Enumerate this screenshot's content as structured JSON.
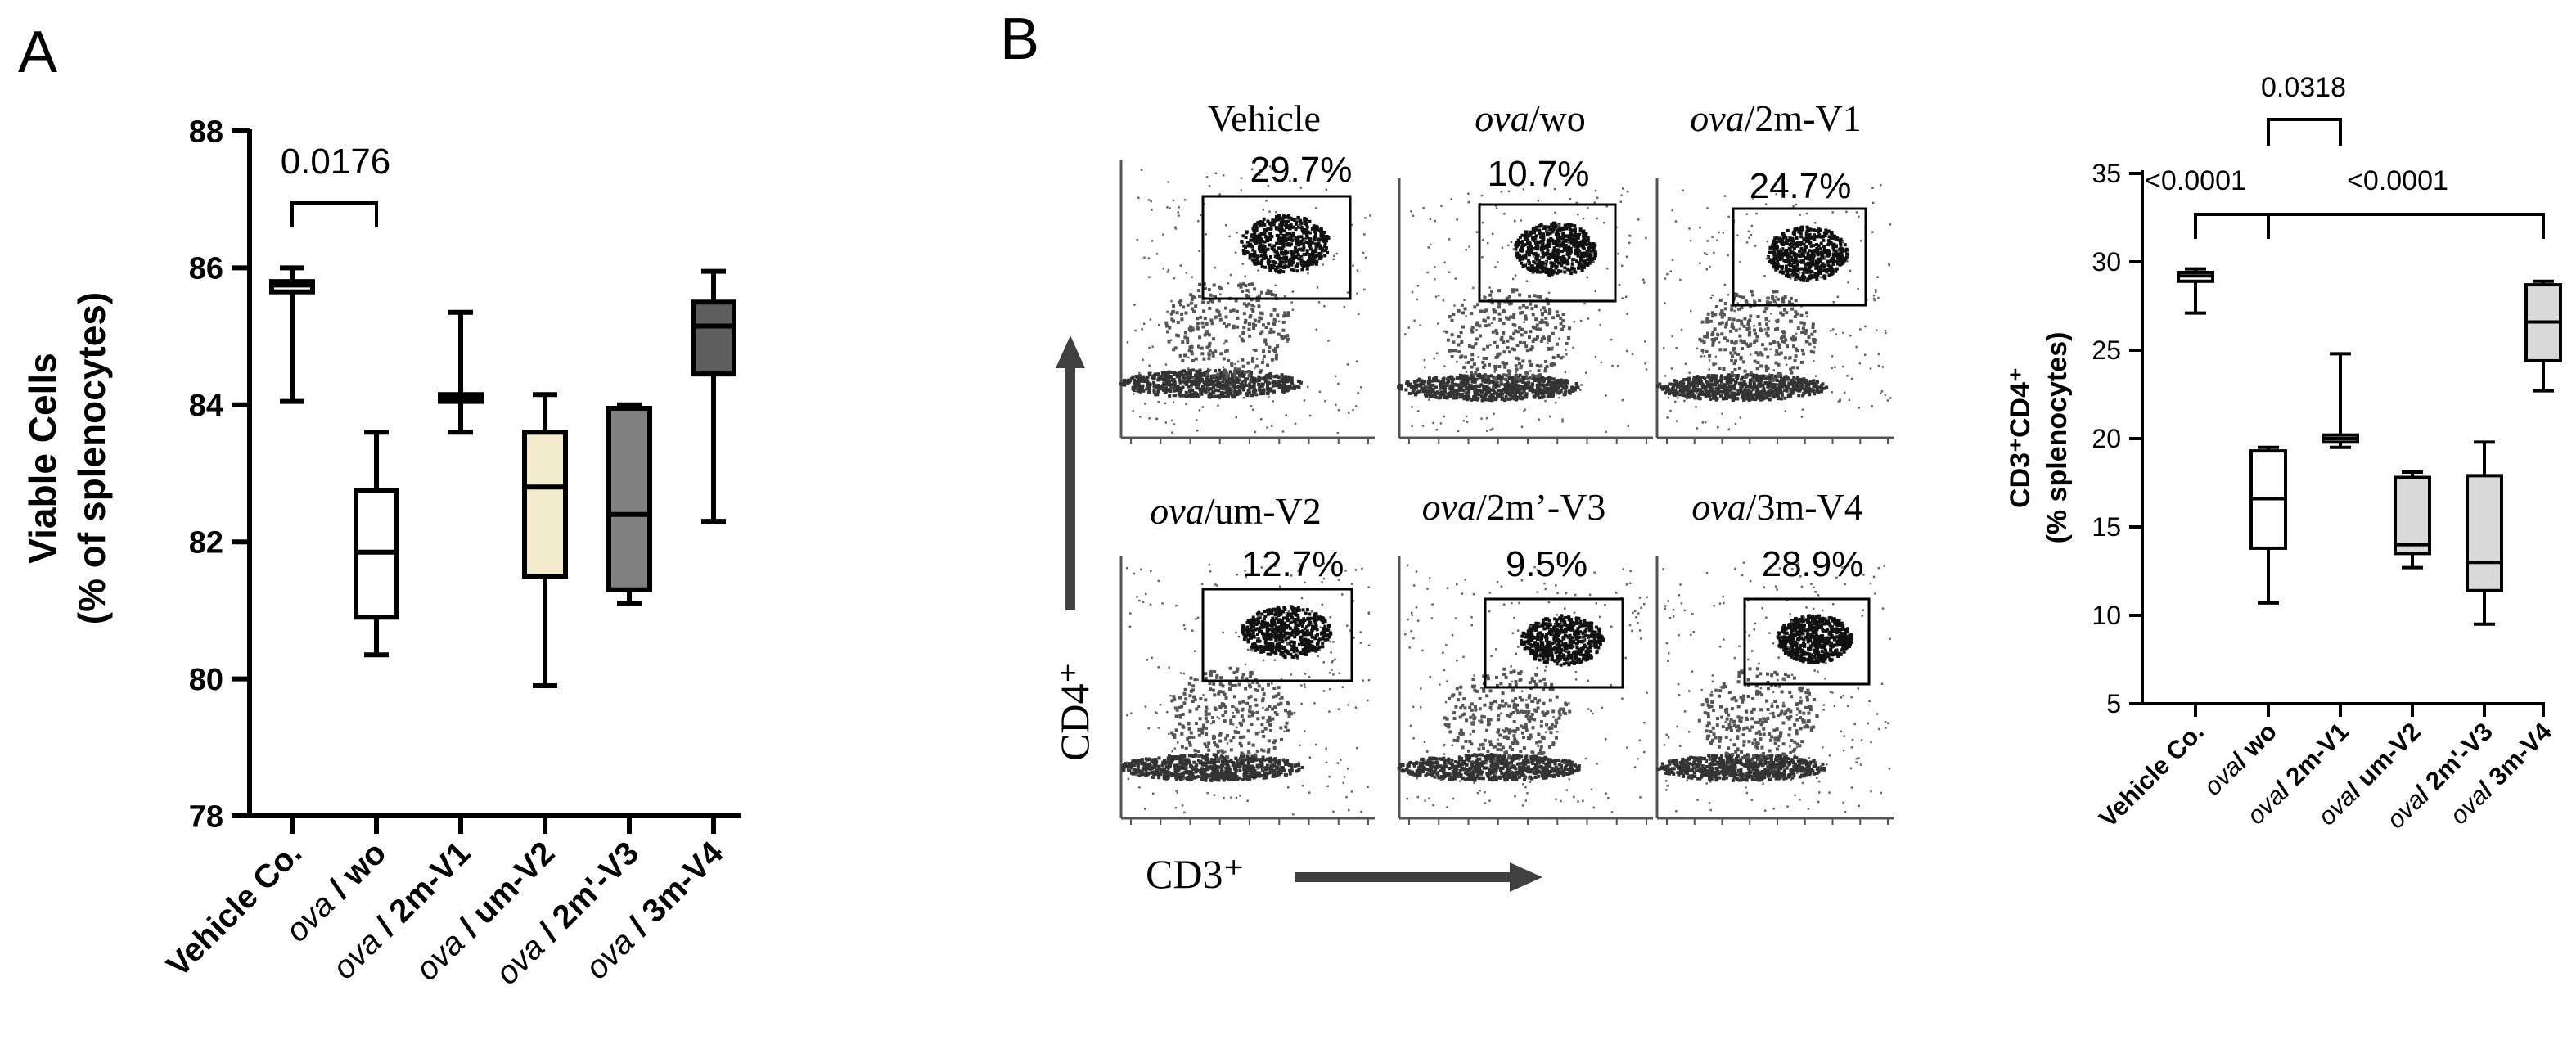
{
  "chart_data": [
    {
      "panel": "A",
      "type": "box",
      "ylabel": [
        "Viable Cells",
        "(% of splenocytes)"
      ],
      "ylim": [
        78,
        88
      ],
      "yticks": [
        78,
        80,
        82,
        84,
        86,
        88
      ],
      "categories": [
        {
          "prefix": "",
          "name": "Vehicle Co."
        },
        {
          "prefix": "ova",
          "sep": " / ",
          "name": "wo"
        },
        {
          "prefix": "ova",
          "sep": " / ",
          "name": "2m-V1"
        },
        {
          "prefix": "ova",
          "sep": " / ",
          "name": "um-V2"
        },
        {
          "prefix": "ova",
          "sep": " / ",
          "name": "2m'-V3"
        },
        {
          "prefix": "ova",
          "sep": " / ",
          "name": "3m-V4"
        }
      ],
      "boxes": [
        {
          "min": 84.05,
          "q1": 85.65,
          "median": 85.75,
          "q3": 85.8,
          "max": 86.0,
          "fill": "#ffffff"
        },
        {
          "min": 80.35,
          "q1": 80.9,
          "median": 81.85,
          "q3": 82.75,
          "max": 83.6,
          "fill": "#ffffff"
        },
        {
          "min": 83.6,
          "q1": 84.05,
          "median": 84.1,
          "q3": 84.15,
          "max": 85.35,
          "fill": "#ffffff"
        },
        {
          "min": 79.9,
          "q1": 81.5,
          "median": 82.8,
          "q3": 83.6,
          "max": 84.15,
          "fill": "#f2eccc"
        },
        {
          "min": 81.1,
          "q1": 81.3,
          "median": 82.4,
          "q3": 83.95,
          "max": 84.0,
          "fill": "#808080"
        },
        {
          "min": 82.3,
          "q1": 84.45,
          "median": 85.15,
          "q3": 85.5,
          "max": 85.95,
          "fill": "#5e5e5e"
        }
      ],
      "comparisons": [
        {
          "from": 0,
          "to": 1,
          "label": "0.0176"
        }
      ]
    },
    {
      "panel": "B-right",
      "type": "box",
      "ylabel": [
        "CD3⁺CD4⁺",
        "(% splenocytes)"
      ],
      "ylim": [
        5,
        35
      ],
      "yticks": [
        5,
        10,
        15,
        20,
        25,
        30,
        35
      ],
      "categories": [
        {
          "prefix": "",
          "name": "Vehicle Co."
        },
        {
          "prefix": "ova",
          "sep": "/ ",
          "name": "wo"
        },
        {
          "prefix": "ova",
          "sep": "/ ",
          "name": "2m-V1"
        },
        {
          "prefix": "ova",
          "sep": "/ ",
          "name": "um-V2"
        },
        {
          "prefix": "ova",
          "sep": "/ ",
          "name": "2m'-V3"
        },
        {
          "prefix": "ova",
          "sep": "/ ",
          "name": "3m-V4"
        }
      ],
      "boxes": [
        {
          "min": 27.1,
          "q1": 28.9,
          "median": 29.2,
          "q3": 29.4,
          "max": 29.6,
          "fill": "#ffffff"
        },
        {
          "min": 10.7,
          "q1": 13.8,
          "median": 16.6,
          "q3": 19.3,
          "max": 19.5,
          "fill": "#ffffff"
        },
        {
          "min": 19.5,
          "q1": 19.8,
          "median": 20.0,
          "q3": 20.2,
          "max": 24.8,
          "fill": "#ffffff"
        },
        {
          "min": 12.7,
          "q1": 13.5,
          "median": 14.0,
          "q3": 17.8,
          "max": 18.1,
          "fill": "#d9d9d9"
        },
        {
          "min": 9.5,
          "q1": 11.4,
          "median": 13.0,
          "q3": 17.9,
          "max": 19.8,
          "fill": "#d9d9d9"
        },
        {
          "min": 22.7,
          "q1": 24.4,
          "median": 26.6,
          "q3": 28.7,
          "max": 28.9,
          "fill": "#d9d9d9"
        }
      ],
      "comparisons": [
        {
          "from": 0,
          "to": 1,
          "label": "<0.0001"
        },
        {
          "from": 1,
          "to": 2,
          "label": "0.0318"
        },
        {
          "from": 1,
          "to": 5,
          "label": "<0.0001"
        }
      ]
    }
  ],
  "panel_labels": {
    "a": "A",
    "b": "B"
  },
  "facs": {
    "y_axis_label": "CD4⁺",
    "x_axis_label": "CD3⁺",
    "plots": [
      {
        "title": "Vehicle",
        "title_italic": "",
        "percent": "29.7%"
      },
      {
        "title": "/wo",
        "title_italic": "ova",
        "percent": "10.7%"
      },
      {
        "title": "/2m-V1",
        "title_italic": "ova",
        "percent": "24.7%"
      },
      {
        "title": "/um-V2",
        "title_italic": "ova",
        "percent": "12.7%"
      },
      {
        "title": "/2m’-V3",
        "title_italic": "ova",
        "percent": "9.5%"
      },
      {
        "title": "/3m-V4",
        "title_italic": "ova",
        "percent": "28.9%"
      }
    ]
  },
  "colors": {
    "axis": "#000000",
    "facs_dots": "#333333",
    "arrow": "#404040"
  }
}
